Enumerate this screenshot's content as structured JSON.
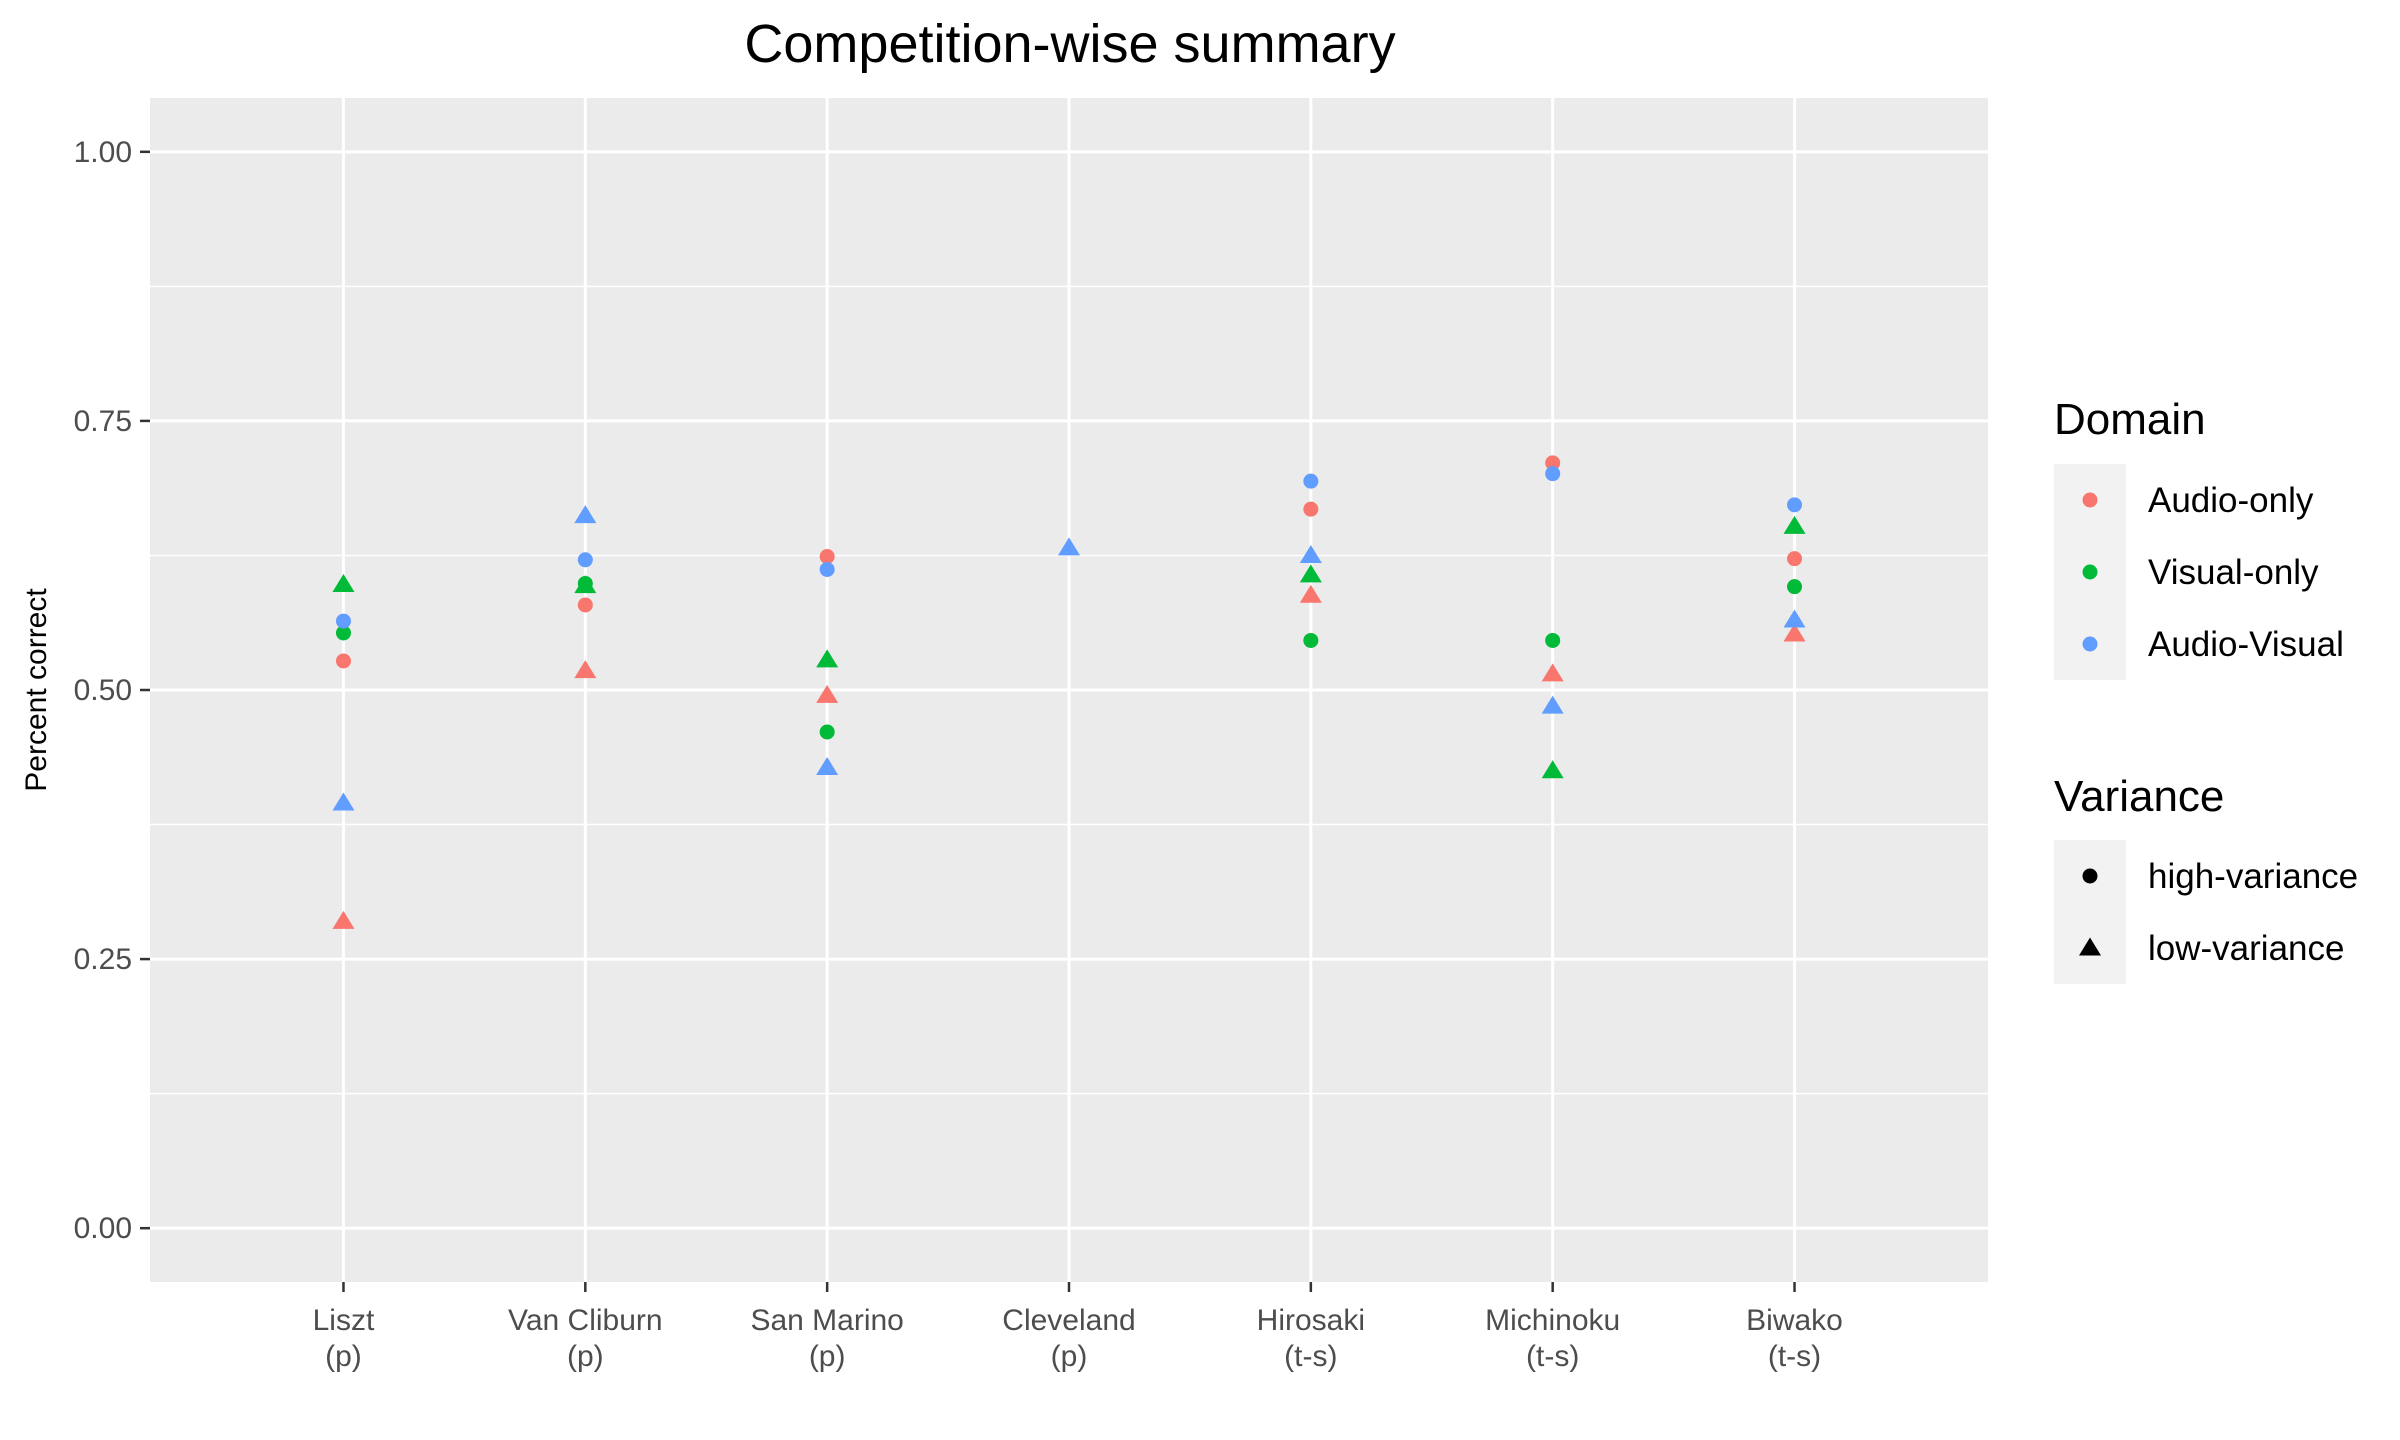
{
  "chart_data": {
    "type": "scatter",
    "title": "Competition-wise summary",
    "xlabel": "",
    "ylabel": "Percent correct",
    "ylim": [
      -0.05,
      1.05
    ],
    "yticks": [
      {
        "value": 0.0,
        "label": "0.00"
      },
      {
        "value": 0.25,
        "label": "0.25"
      },
      {
        "value": 0.5,
        "label": "0.50"
      },
      {
        "value": 0.75,
        "label": "0.75"
      },
      {
        "value": 1.0,
        "label": "1.00"
      }
    ],
    "categories": [
      {
        "name": "Liszt",
        "sub": "(p)"
      },
      {
        "name": "Van Cliburn",
        "sub": "(p)"
      },
      {
        "name": "San Marino",
        "sub": "(p)"
      },
      {
        "name": "Cleveland",
        "sub": "(p)"
      },
      {
        "name": "Hirosaki",
        "sub": "(t-s)"
      },
      {
        "name": "Michinoku",
        "sub": "(t-s)"
      },
      {
        "name": "Biwako",
        "sub": "(t-s)"
      }
    ],
    "grid": true,
    "legend_position": "right",
    "colors": {
      "Audio-only": "#F8766D",
      "Visual-only": "#00BA38",
      "Audio-Visual": "#619CFF",
      "panel": "#EBEBEB",
      "grid": "#FFFFFF"
    },
    "legend": {
      "domain_title": "Domain",
      "domain_items": [
        "Audio-only",
        "Visual-only",
        "Audio-Visual"
      ],
      "variance_title": "Variance",
      "variance_items": [
        {
          "label": "high-variance",
          "shape": "circle"
        },
        {
          "label": "low-variance",
          "shape": "triangle"
        }
      ]
    },
    "points": [
      {
        "category": "Liszt",
        "domain": "Audio-only",
        "variance": "high-variance",
        "y": 0.527
      },
      {
        "category": "Liszt",
        "domain": "Visual-only",
        "variance": "high-variance",
        "y": 0.553
      },
      {
        "category": "Liszt",
        "domain": "Audio-Visual",
        "variance": "high-variance",
        "y": 0.564
      },
      {
        "category": "Liszt",
        "domain": "Audio-only",
        "variance": "low-variance",
        "y": 0.285
      },
      {
        "category": "Liszt",
        "domain": "Visual-only",
        "variance": "low-variance",
        "y": 0.598
      },
      {
        "category": "Liszt",
        "domain": "Audio-Visual",
        "variance": "low-variance",
        "y": 0.395
      },
      {
        "category": "Van Cliburn",
        "domain": "Audio-only",
        "variance": "high-variance",
        "y": 0.579
      },
      {
        "category": "Van Cliburn",
        "domain": "Visual-only",
        "variance": "high-variance",
        "y": 0.599
      },
      {
        "category": "Van Cliburn",
        "domain": "Audio-Visual",
        "variance": "high-variance",
        "y": 0.621
      },
      {
        "category": "Van Cliburn",
        "domain": "Audio-only",
        "variance": "low-variance",
        "y": 0.518
      },
      {
        "category": "Van Cliburn",
        "domain": "Visual-only",
        "variance": "low-variance",
        "y": 0.597
      },
      {
        "category": "Van Cliburn",
        "domain": "Audio-Visual",
        "variance": "low-variance",
        "y": 0.662
      },
      {
        "category": "San Marino",
        "domain": "Audio-only",
        "variance": "high-variance",
        "y": 0.624
      },
      {
        "category": "San Marino",
        "domain": "Visual-only",
        "variance": "high-variance",
        "y": 0.461
      },
      {
        "category": "San Marino",
        "domain": "Audio-Visual",
        "variance": "high-variance",
        "y": 0.612
      },
      {
        "category": "San Marino",
        "domain": "Audio-only",
        "variance": "low-variance",
        "y": 0.495
      },
      {
        "category": "San Marino",
        "domain": "Visual-only",
        "variance": "low-variance",
        "y": 0.528
      },
      {
        "category": "San Marino",
        "domain": "Audio-Visual",
        "variance": "low-variance",
        "y": 0.428
      },
      {
        "category": "Cleveland",
        "domain": "Audio-Visual",
        "variance": "low-variance",
        "y": 0.632
      },
      {
        "category": "Hirosaki",
        "domain": "Audio-only",
        "variance": "high-variance",
        "y": 0.668
      },
      {
        "category": "Hirosaki",
        "domain": "Visual-only",
        "variance": "high-variance",
        "y": 0.546
      },
      {
        "category": "Hirosaki",
        "domain": "Audio-Visual",
        "variance": "high-variance",
        "y": 0.694
      },
      {
        "category": "Hirosaki",
        "domain": "Audio-only",
        "variance": "low-variance",
        "y": 0.588
      },
      {
        "category": "Hirosaki",
        "domain": "Visual-only",
        "variance": "low-variance",
        "y": 0.607
      },
      {
        "category": "Hirosaki",
        "domain": "Audio-Visual",
        "variance": "low-variance",
        "y": 0.625
      },
      {
        "category": "Michinoku",
        "domain": "Audio-only",
        "variance": "high-variance",
        "y": 0.711
      },
      {
        "category": "Michinoku",
        "domain": "Visual-only",
        "variance": "high-variance",
        "y": 0.546
      },
      {
        "category": "Michinoku",
        "domain": "Audio-Visual",
        "variance": "high-variance",
        "y": 0.701
      },
      {
        "category": "Michinoku",
        "domain": "Audio-only",
        "variance": "low-variance",
        "y": 0.515
      },
      {
        "category": "Michinoku",
        "domain": "Visual-only",
        "variance": "low-variance",
        "y": 0.425
      },
      {
        "category": "Michinoku",
        "domain": "Audio-Visual",
        "variance": "low-variance",
        "y": 0.485
      },
      {
        "category": "Biwako",
        "domain": "Audio-only",
        "variance": "high-variance",
        "y": 0.622
      },
      {
        "category": "Biwako",
        "domain": "Visual-only",
        "variance": "high-variance",
        "y": 0.596
      },
      {
        "category": "Biwako",
        "domain": "Audio-Visual",
        "variance": "high-variance",
        "y": 0.672
      },
      {
        "category": "Biwako",
        "domain": "Audio-only",
        "variance": "low-variance",
        "y": 0.552
      },
      {
        "category": "Biwako",
        "domain": "Visual-only",
        "variance": "low-variance",
        "y": 0.652
      },
      {
        "category": "Biwako",
        "domain": "Audio-Visual",
        "variance": "low-variance",
        "y": 0.565
      }
    ]
  }
}
